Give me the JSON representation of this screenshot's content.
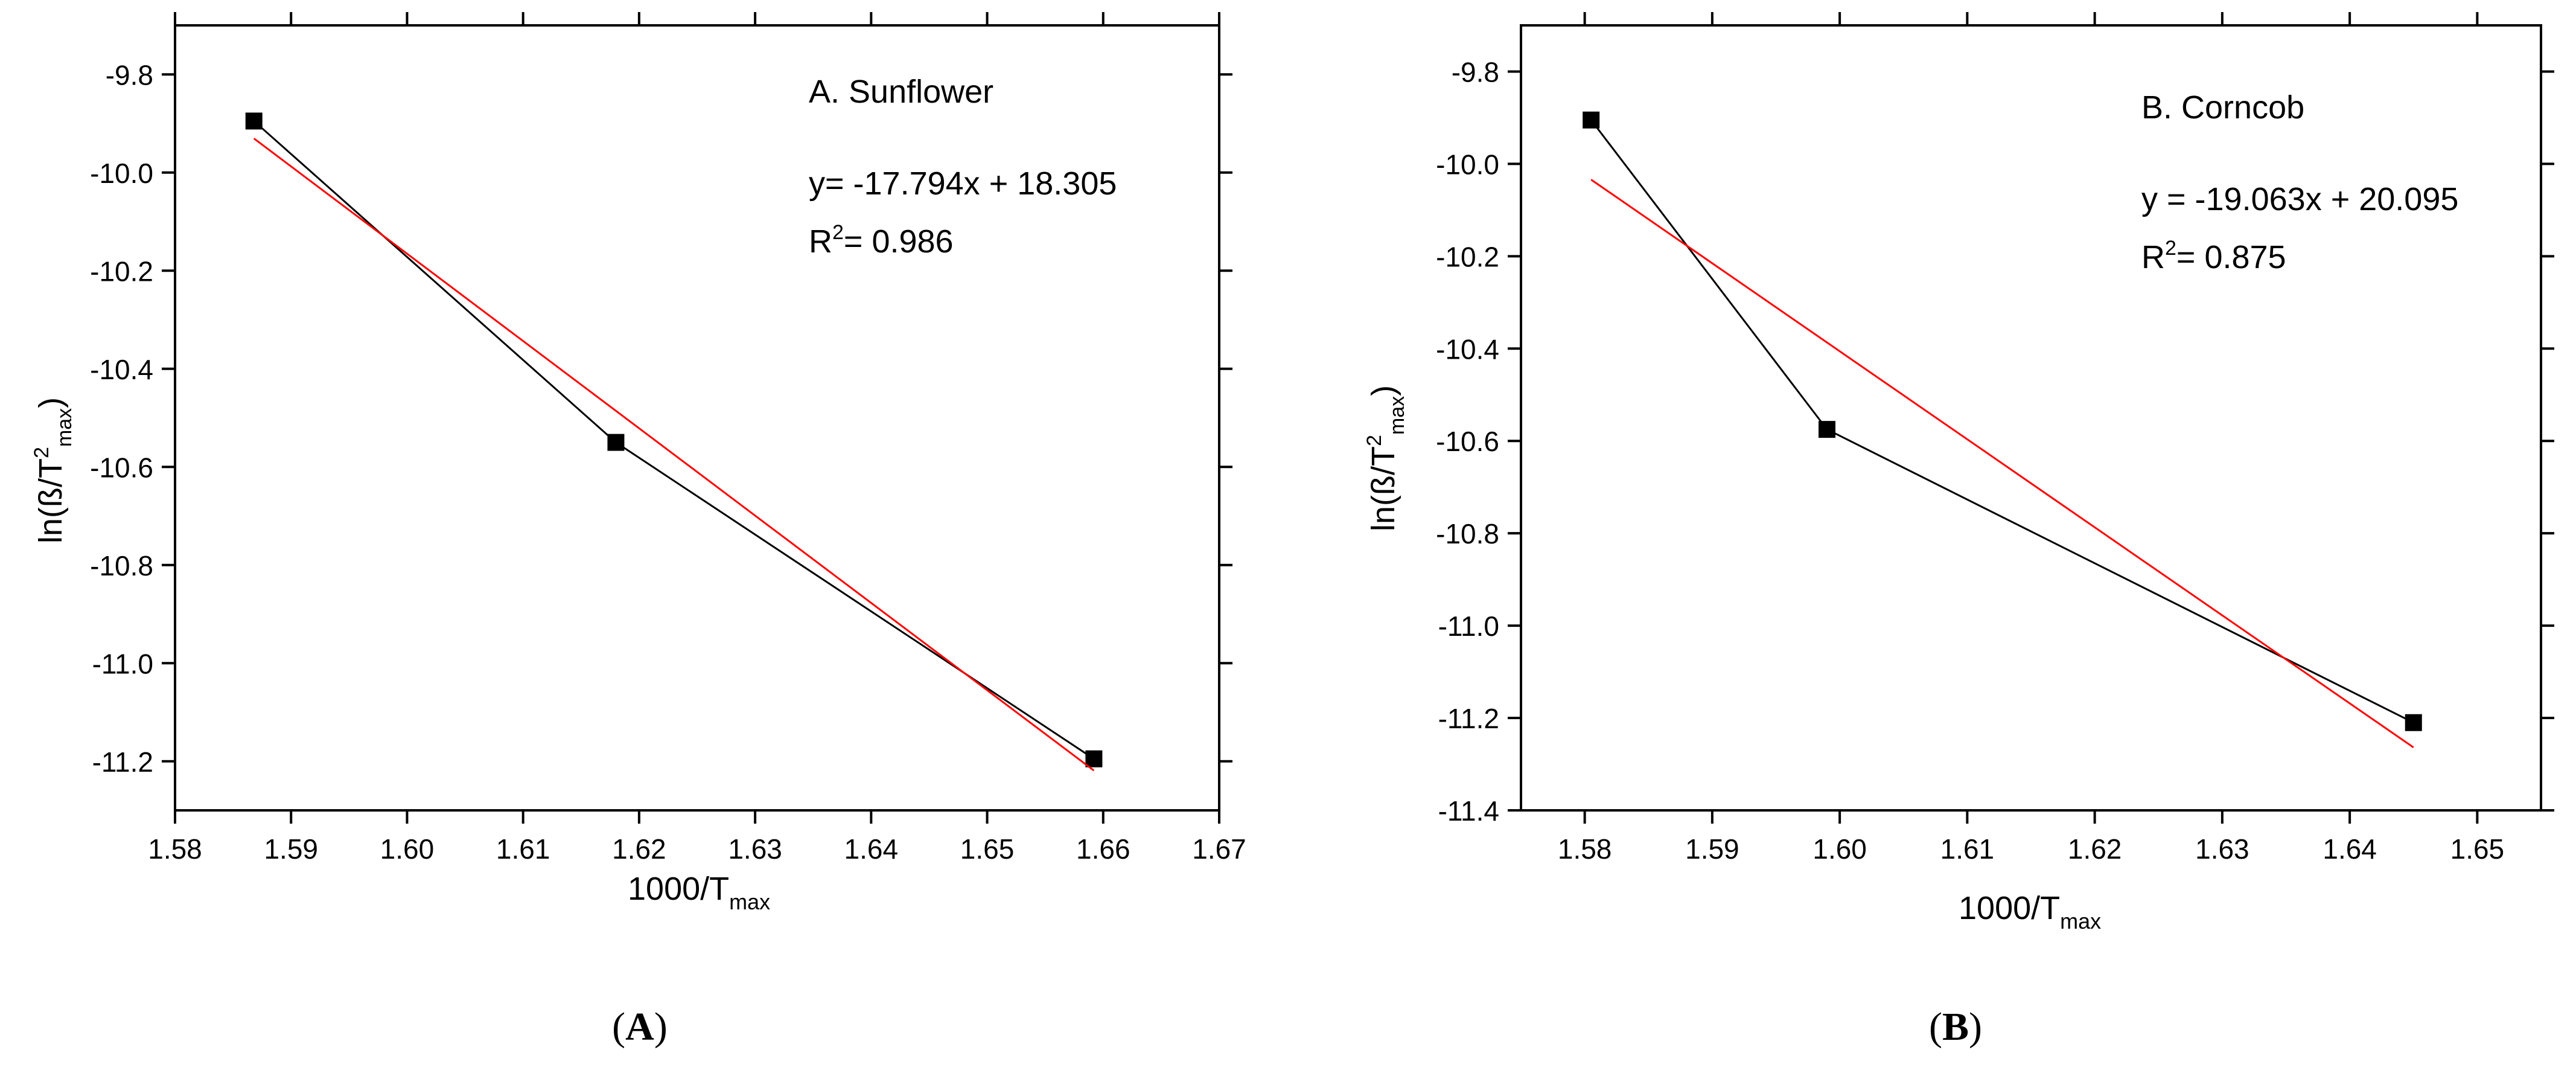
{
  "chart_data": [
    {
      "id": "A",
      "type": "scatter",
      "panel_label": "A",
      "title": "A. Sunflower",
      "xlabel": {
        "text": "1000/T",
        "sub": "max"
      },
      "ylabel": {
        "prefix": "ln(ß/T",
        "sup": "2",
        "sub": "max",
        "suffix": ")"
      },
      "xlim": [
        1.58,
        1.67
      ],
      "ylim": [
        -11.3,
        -9.7
      ],
      "xticks": [
        1.58,
        1.59,
        1.6,
        1.61,
        1.62,
        1.63,
        1.64,
        1.65,
        1.66,
        1.67
      ],
      "xtick_labels": [
        "1.58",
        "1.59",
        "1.60",
        "1.61",
        "1.62",
        "1.63",
        "1.64",
        "1.65",
        "1.66",
        "1.67"
      ],
      "yticks": [
        -9.8,
        -10.0,
        -10.2,
        -10.4,
        -10.6,
        -10.8,
        -11.0,
        -11.2
      ],
      "ytick_labels": [
        "-9.8",
        "-10.0",
        "-10.2",
        "-10.4",
        "-10.6",
        "-10.8",
        "-11.0",
        "-11.2"
      ],
      "grid": false,
      "series": [
        {
          "name": "data",
          "color": "#000000",
          "marker": "square",
          "x": [
            1.5868,
            1.618,
            1.6592
          ],
          "y": [
            -9.895,
            -10.55,
            -11.195
          ]
        }
      ],
      "fit": {
        "color": "#ff0000",
        "slope": -17.794,
        "intercept": 18.305,
        "x_range": [
          1.5868,
          1.6592
        ],
        "equation": "y= -17.794x + 18.305",
        "r2_prefix": "R",
        "r2_sup": "2",
        "r2_value": "= 0.986"
      }
    },
    {
      "id": "B",
      "type": "scatter",
      "panel_label": "B",
      "title": "B. Corncob",
      "xlabel": {
        "text": "1000/T",
        "sub": "max"
      },
      "ylabel": {
        "prefix": "ln(ß/T",
        "sup": "2",
        "sub": "max",
        "suffix": ")"
      },
      "xlim": [
        1.575,
        1.655
      ],
      "ylim": [
        -11.4,
        -9.7
      ],
      "xticks": [
        1.58,
        1.59,
        1.6,
        1.61,
        1.62,
        1.63,
        1.64,
        1.65
      ],
      "xtick_labels": [
        "1.58",
        "1.59",
        "1.60",
        "1.61",
        "1.62",
        "1.63",
        "1.64",
        "1.65"
      ],
      "yticks": [
        -9.8,
        -10.0,
        -10.2,
        -10.4,
        -10.6,
        -10.8,
        -11.0,
        -11.2,
        -11.4
      ],
      "ytick_labels": [
        "-9.8",
        "-10.0",
        "-10.2",
        "-10.4",
        "-10.6",
        "-10.8",
        "-11.0",
        "-11.2",
        "-11.4"
      ],
      "grid": false,
      "series": [
        {
          "name": "data",
          "color": "#000000",
          "marker": "square",
          "x": [
            1.5805,
            1.599,
            1.645
          ],
          "y": [
            -9.905,
            -10.575,
            -11.21
          ]
        }
      ],
      "fit": {
        "color": "#ff0000",
        "slope": -19.063,
        "intercept": 20.095,
        "x_range": [
          1.5805,
          1.645
        ],
        "equation": "y = -19.063x + 20.095",
        "r2_prefix": "R",
        "r2_sup": "2",
        "r2_value": "= 0.875"
      }
    }
  ]
}
